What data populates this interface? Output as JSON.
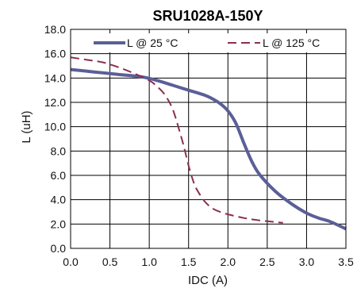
{
  "chart_data": {
    "type": "line",
    "title": "SRU1028A-150Y",
    "xlabel": "IDC (A)",
    "ylabel": "L  (uH)",
    "xlim": [
      0,
      3.5
    ],
    "ylim": [
      0,
      18
    ],
    "x_ticks": [
      "0.0",
      "0.5",
      "1.0",
      "1.5",
      "2.0",
      "2.5",
      "3.0",
      "3.5"
    ],
    "y_ticks": [
      "0.0",
      "2.0",
      "4.0",
      "6.0",
      "8.0",
      "10.0",
      "12.0",
      "14.0",
      "16.0",
      "18.0"
    ],
    "grid": true,
    "legend_position": "top",
    "series": [
      {
        "name": "L @ 25 °C",
        "style": "solid",
        "color": "#5b5f97",
        "x": [
          0.0,
          0.3,
          0.6,
          0.9,
          1.1,
          1.3,
          1.5,
          1.7,
          1.8,
          1.9,
          2.0,
          2.1,
          2.2,
          2.3,
          2.4,
          2.6,
          2.8,
          3.0,
          3.15,
          3.3,
          3.5
        ],
        "y": [
          14.7,
          14.5,
          14.3,
          14.1,
          13.8,
          13.4,
          13.0,
          12.6,
          12.3,
          11.9,
          11.3,
          10.3,
          8.7,
          7.2,
          6.1,
          4.7,
          3.7,
          2.9,
          2.5,
          2.2,
          1.6
        ]
      },
      {
        "name": "L @ 125 °C",
        "style": "dashed",
        "color": "#8b2f52",
        "x": [
          0.0,
          0.2,
          0.4,
          0.6,
          0.8,
          1.0,
          1.1,
          1.2,
          1.3,
          1.4,
          1.45,
          1.5,
          1.55,
          1.6,
          1.7,
          1.8,
          1.9,
          2.0,
          2.2,
          2.4,
          2.7
        ],
        "y": [
          15.7,
          15.5,
          15.3,
          14.9,
          14.4,
          13.8,
          13.3,
          12.6,
          11.4,
          9.3,
          8.1,
          6.8,
          5.7,
          4.9,
          3.9,
          3.3,
          3.0,
          2.8,
          2.5,
          2.3,
          2.1
        ]
      }
    ]
  }
}
